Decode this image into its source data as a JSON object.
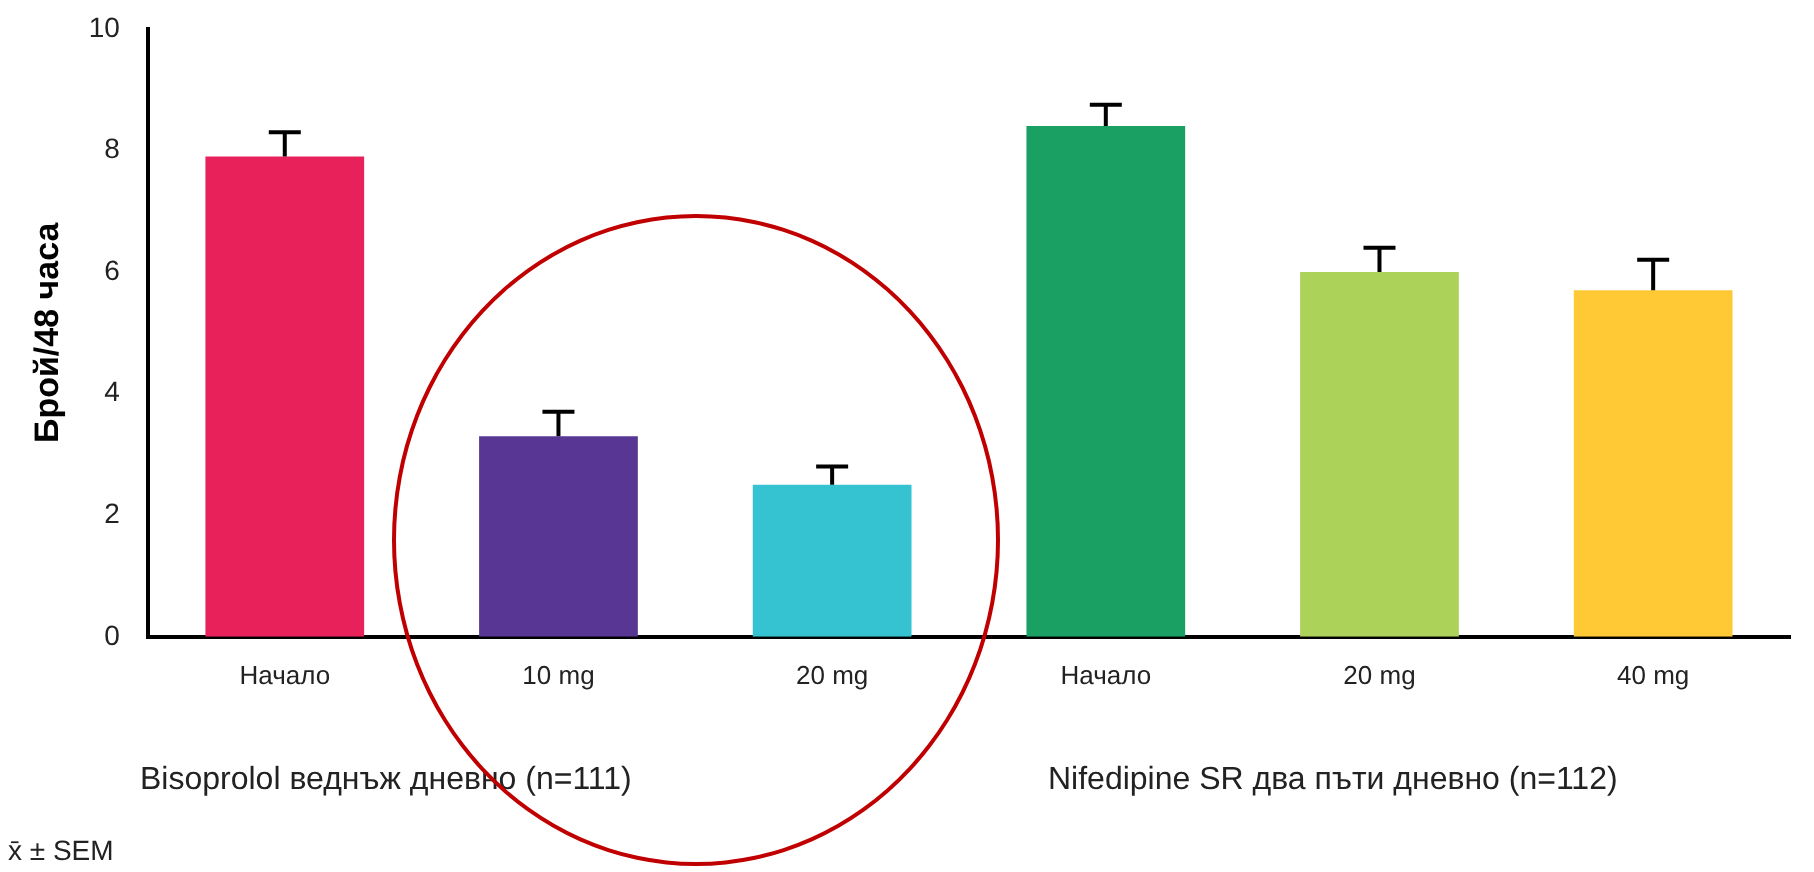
{
  "chart_data": {
    "type": "bar",
    "ylabel": "Брой/48 часа",
    "categories": [
      "Начало",
      "10 mg",
      "20 mg",
      "Начало",
      "20 mg",
      "40 mg"
    ],
    "values": [
      7.9,
      3.3,
      2.5,
      8.4,
      6.0,
      5.7
    ],
    "colors": [
      "#e8215a",
      "#573694",
      "#35c3d1",
      "#1ba064",
      "#acd259",
      "#fec935"
    ],
    "errors": [
      [
        7.9,
        8.3
      ],
      [
        3.3,
        3.7
      ],
      [
        2.5,
        2.8
      ],
      [
        8.4,
        8.75
      ],
      [
        6.0,
        6.4
      ],
      [
        5.7,
        6.2
      ]
    ],
    "ylim": [
      0,
      10
    ],
    "yticks": [
      0,
      2,
      4,
      6,
      8,
      10
    ],
    "grid": false,
    "legend": false,
    "annotations": [
      "Bisoprolol веднъж дневно (n=111)",
      "Nifedipine SR два пъти дневно (n=112)",
      "x̄ ± SEM"
    ]
  }
}
